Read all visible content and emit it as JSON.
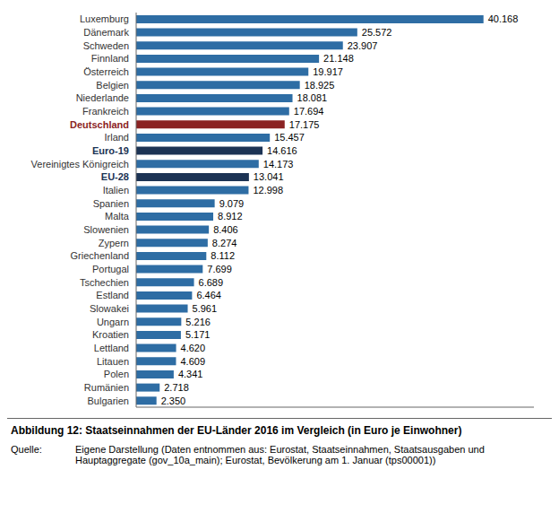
{
  "chart_data": {
    "type": "bar",
    "orientation": "horizontal",
    "title": "Abbildung 12: Staatseinnahmen der EU-Länder 2016 im Vergleich (in Euro je Einwohner)",
    "annotations": [
      "Quelle:",
      "Eigene Darstellung (Daten entnommen aus: Eurostat, Staatseinnahmen, Staatsausgaben und\nHauptaggregate (gov_10a_main); Eurostat, Bevölkerung am 1. Januar (tps00001))"
    ],
    "categories": [
      "Luxemburg",
      "Dänemark",
      "Schweden",
      "Finnland",
      "Österreich",
      "Belgien",
      "Niederlande",
      "Frankreich",
      "Deutschland",
      "Irland",
      "Euro-19",
      "Vereinigtes Königreich",
      "EU-28",
      "Italien",
      "Spanien",
      "Malta",
      "Slowenien",
      "Zypern",
      "Griechenland",
      "Portugal",
      "Tschechien",
      "Estland",
      "Slowakei",
      "Ungarn",
      "Kroatien",
      "Lettland",
      "Litauen",
      "Polen",
      "Rumänien",
      "Bulgarien"
    ],
    "values": [
      40168,
      25572,
      23907,
      21148,
      19917,
      18925,
      18081,
      17694,
      17175,
      15457,
      14616,
      14173,
      13041,
      12998,
      9079,
      8912,
      8406,
      8274,
      8112,
      7699,
      6689,
      6464,
      5961,
      5216,
      5171,
      4620,
      4609,
      4341,
      2718,
      2350
    ],
    "value_labels": [
      "40.168",
      "25.572",
      "23.907",
      "21.148",
      "19.917",
      "18.925",
      "18.081",
      "17.694",
      "17.175",
      "15.457",
      "14.616",
      "14.173",
      "13.041",
      "12.998",
      "9.079",
      "8.912",
      "8.406",
      "8.274",
      "8.112",
      "7.699",
      "6.689",
      "6.464",
      "5.961",
      "5.216",
      "5.171",
      "4.620",
      "4.609",
      "4.341",
      "2.718",
      "2.350"
    ],
    "colors": [
      "#2e6da4",
      "#2e6da4",
      "#2e6da4",
      "#2e6da4",
      "#2e6da4",
      "#2e6da4",
      "#2e6da4",
      "#2e6da4",
      "#8b2323",
      "#2e6da4",
      "#1c3354",
      "#2e6da4",
      "#1c3354",
      "#2e6da4",
      "#2e6da4",
      "#2e6da4",
      "#2e6da4",
      "#2e6da4",
      "#2e6da4",
      "#2e6da4",
      "#2e6da4",
      "#2e6da4",
      "#2e6da4",
      "#2e6da4",
      "#2e6da4",
      "#2e6da4",
      "#2e6da4",
      "#2e6da4",
      "#2e6da4",
      "#2e6da4"
    ],
    "xlim": [
      0,
      46000
    ],
    "data_labels": true,
    "tick_labels": "y",
    "grid": false
  }
}
